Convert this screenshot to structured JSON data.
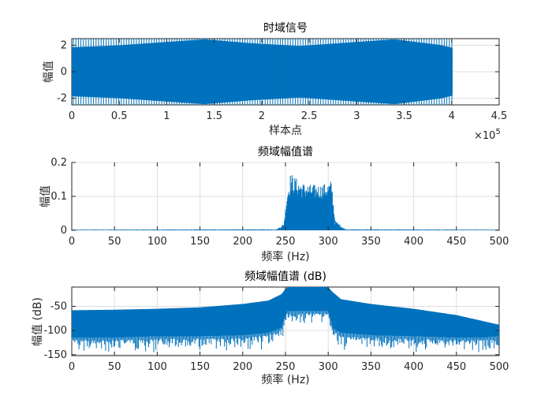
{
  "accent": "#0072BD",
  "chart_data": [
    {
      "type": "line",
      "title": "时域信号",
      "xlabel": "样本点",
      "ylabel": "幅值",
      "x_exponent_label": "×10^5",
      "xlim": [
        0,
        450000
      ],
      "ylim": [
        -2.5,
        2.5
      ],
      "grid": true,
      "xticks": [
        0,
        50000,
        100000,
        150000,
        200000,
        250000,
        300000,
        350000,
        400000,
        450000
      ],
      "xtick_labels": [
        "0",
        "0.5",
        "1",
        "1.5",
        "2",
        "2.5",
        "3",
        "3.5",
        "4",
        "4.5"
      ],
      "yticks": [
        -2,
        0,
        2
      ],
      "ytick_labels": [
        "-2",
        "0",
        "2"
      ],
      "signal_end_sample": 401000,
      "series": [
        {
          "x": [
            0,
            50000,
            100000,
            140000,
            190000,
            240000,
            290000,
            340000,
            390000,
            401000
          ],
          "envelope_upper": [
            1.85,
            2.0,
            2.25,
            2.45,
            2.15,
            1.95,
            2.2,
            2.45,
            2.0,
            1.8
          ],
          "envelope_lower": [
            -1.85,
            -2.0,
            -2.25,
            -2.45,
            -2.15,
            -1.95,
            -2.2,
            -2.45,
            -2.0,
            -1.8
          ],
          "peak": 2.5
        }
      ]
    },
    {
      "type": "line",
      "title": "频域幅值谱",
      "xlabel": "频率 (Hz)",
      "ylabel": "幅值",
      "xlim": [
        0,
        500
      ],
      "ylim": [
        0,
        0.2
      ],
      "grid": true,
      "xticks": [
        0,
        50,
        100,
        150,
        200,
        250,
        300,
        350,
        400,
        450,
        500
      ],
      "xtick_labels": [
        "0",
        "50",
        "100",
        "150",
        "200",
        "250",
        "300",
        "350",
        "400",
        "450",
        "500"
      ],
      "yticks": [
        0,
        0.1,
        0.2
      ],
      "ytick_labels": [
        "0",
        "0.1",
        "0.2"
      ],
      "series": [
        {
          "x": [
            0,
            240,
            248,
            252,
            256,
            262,
            270,
            280,
            290,
            300,
            304,
            308,
            320,
            500
          ],
          "upper": [
            0.002,
            0.003,
            0.02,
            0.12,
            0.17,
            0.155,
            0.14,
            0.135,
            0.135,
            0.14,
            0.15,
            0.03,
            0.003,
            0.002
          ],
          "lower": [
            0,
            0,
            0.0,
            0.02,
            0.04,
            0.04,
            0.04,
            0.04,
            0.04,
            0.04,
            0.03,
            0.0,
            0,
            0
          ]
        }
      ]
    },
    {
      "type": "line",
      "title": "频域幅值谱 (dB)",
      "xlabel": "频率 (Hz)",
      "ylabel": "幅值 (dB)",
      "xlim": [
        0,
        500
      ],
      "ylim": [
        -152,
        -10
      ],
      "grid": true,
      "xticks": [
        0,
        50,
        100,
        150,
        200,
        250,
        300,
        350,
        400,
        450,
        500
      ],
      "xtick_labels": [
        "0",
        "50",
        "100",
        "150",
        "200",
        "250",
        "300",
        "350",
        "400",
        "450",
        "500"
      ],
      "yticks": [
        -150,
        -100,
        -50
      ],
      "ytick_labels": [
        "-150",
        "-100",
        "-50"
      ],
      "series": [
        {
          "x": [
            0,
            50,
            100,
            150,
            200,
            230,
            245,
            252,
            300,
            305,
            315,
            350,
            400,
            450,
            480,
            500
          ],
          "upper": [
            -58,
            -57,
            -55,
            -52,
            -45,
            -38,
            -25,
            -10,
            -10,
            -20,
            -35,
            -45,
            -55,
            -68,
            -80,
            -88
          ],
          "lower": [
            -115,
            -115,
            -112,
            -112,
            -110,
            -105,
            -95,
            -60,
            -60,
            -95,
            -105,
            -110,
            -112,
            -115,
            -115,
            -112
          ],
          "spikes": [
            -140,
            -150
          ]
        }
      ]
    }
  ]
}
